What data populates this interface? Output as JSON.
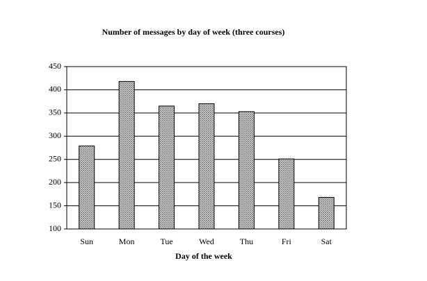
{
  "chart_data": {
    "type": "bar",
    "title": "Number of messages by day of week (three courses)",
    "x_label": "Day of the week",
    "categories": [
      "Sun",
      "Mon",
      "Tue",
      "Wed",
      "Thu",
      "Fri",
      "Sat"
    ],
    "values": [
      279,
      418,
      365,
      370,
      353,
      251,
      168
    ],
    "color": "#808080",
    "ylim": [
      100,
      450
    ],
    "yticks": [
      100,
      150,
      200,
      250,
      300,
      350,
      400,
      450
    ],
    "grid": true
  }
}
